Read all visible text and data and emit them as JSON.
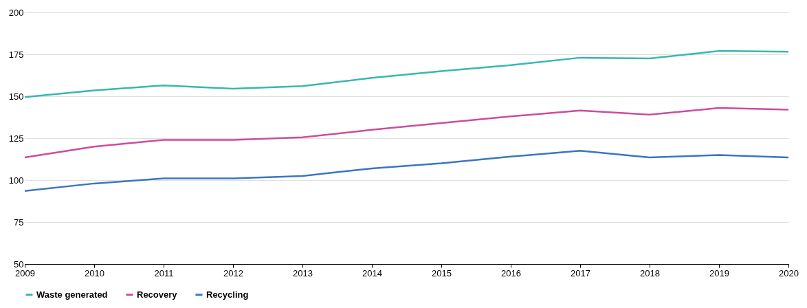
{
  "chart_data": {
    "type": "line",
    "x": [
      2009,
      2010,
      2011,
      2012,
      2013,
      2014,
      2015,
      2016,
      2017,
      2018,
      2019,
      2020
    ],
    "series": [
      {
        "name": "Waste generated",
        "color": "#36b8b0",
        "values": [
          149.5,
          153.5,
          156.5,
          154.5,
          156,
          161,
          165,
          168.5,
          173,
          172.5,
          177,
          176.5
        ]
      },
      {
        "name": "Recovery",
        "color": "#cc4c9e",
        "values": [
          113.5,
          120,
          124,
          124,
          125.5,
          130,
          134,
          138,
          141.5,
          139,
          143,
          142
        ]
      },
      {
        "name": "Recycling",
        "color": "#3a75c4",
        "values": [
          93.5,
          98,
          101,
          101,
          102.5,
          107,
          110,
          114,
          117.5,
          113.5,
          115,
          113.5
        ]
      }
    ],
    "xlim": [
      2009,
      2020
    ],
    "xticks": [
      2009,
      2010,
      2011,
      2012,
      2013,
      2014,
      2015,
      2016,
      2017,
      2018,
      2019,
      2020
    ],
    "ylim": [
      50,
      200
    ],
    "yticks": [
      50,
      75,
      100,
      125,
      150,
      175,
      200
    ],
    "grid": "y",
    "legend": "bottom",
    "marker": "none",
    "line_style": "solid"
  }
}
